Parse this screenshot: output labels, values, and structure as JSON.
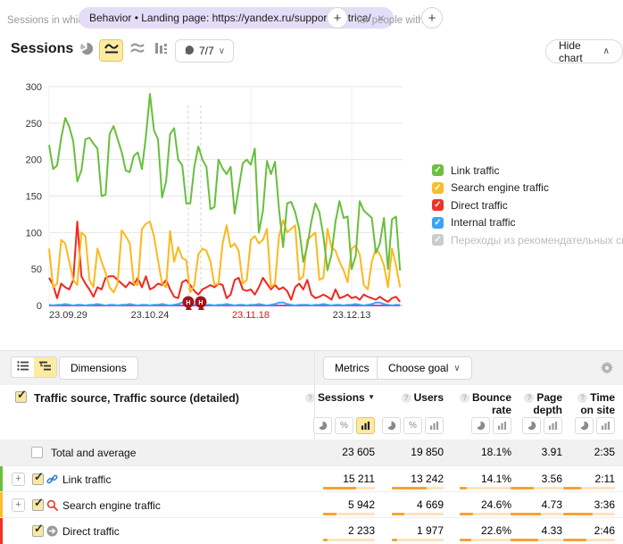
{
  "filter_bar": {
    "prefix": "Sessions in which",
    "chip_text": "Behavior • Landing page: https://yandex.ru/support/metrica/",
    "close_glyph": "×",
    "add_glyph": "+",
    "middle": "for people with"
  },
  "chart_header": {
    "title": "Sessions",
    "segments_label": "7/7",
    "caret_down": "∨",
    "hide_label": "Hide chart",
    "caret_up": "∧"
  },
  "legend": {
    "items": [
      {
        "label": "Link traffic",
        "color": "#6dbf40",
        "disabled": false
      },
      {
        "label": "Search engine traffic",
        "color": "#fbbd2c",
        "disabled": false
      },
      {
        "label": "Direct traffic",
        "color": "#f03226",
        "disabled": false
      },
      {
        "label": "Internal traffic",
        "color": "#3aa5f5",
        "disabled": false
      },
      {
        "label": "Переходы из рекомендательных систем",
        "color": "#cccccc",
        "disabled": true
      }
    ],
    "check_glyph": "✓"
  },
  "chart_data": {
    "type": "line",
    "title": "Sessions",
    "ylim": [
      0,
      300
    ],
    "yticks": [
      0,
      50,
      100,
      150,
      200,
      250,
      300
    ],
    "grid": true,
    "legend_position": "right",
    "x_unit": "day",
    "ticks": [
      {
        "label": "23.09.29",
        "day": 0,
        "weekend": false
      },
      {
        "label": "23.10.24",
        "day": 25,
        "weekend": false
      },
      {
        "label": "23.11.18",
        "day": 50,
        "weekend": true
      },
      {
        "label": "23.12.13",
        "day": 75,
        "weekend": false
      }
    ],
    "notes": [
      {
        "day": 34.5,
        "label": "Н"
      },
      {
        "day": 37.6,
        "label": "Н"
      }
    ],
    "series": [
      {
        "name": "Link traffic",
        "color": "#67bf3c",
        "values": [
          220,
          187,
          192,
          230,
          257,
          245,
          225,
          170,
          185,
          228,
          230,
          222,
          215,
          150,
          152,
          235,
          246,
          228,
          210,
          185,
          183,
          205,
          210,
          187,
          232,
          290,
          240,
          228,
          148,
          170,
          235,
          243,
          200,
          192,
          140,
          140,
          190,
          218,
          200,
          190,
          132,
          135,
          200,
          188,
          180,
          190,
          126,
          160,
          195,
          200,
          193,
          215,
          100,
          130,
          198,
          180,
          197,
          132,
          80,
          140,
          142,
          128,
          105,
          60,
          82,
          115,
          140,
          128,
          95,
          48,
          70,
          115,
          143,
          120,
          122,
          50,
          68,
          143,
          130,
          125,
          120,
          72,
          85,
          120,
          50,
          118,
          122,
          48
        ]
      },
      {
        "name": "Search engine traffic",
        "color": "#fcb81e",
        "values": [
          78,
          25,
          30,
          90,
          85,
          60,
          35,
          28,
          100,
          95,
          35,
          25,
          78,
          60,
          45,
          25,
          18,
          30,
          103,
          95,
          85,
          30,
          28,
          105,
          112,
          115,
          95,
          62,
          30,
          25,
          102,
          60,
          80,
          65,
          62,
          18,
          28,
          70,
          78,
          75,
          60,
          28,
          30,
          85,
          110,
          80,
          85,
          75,
          30,
          35,
          90,
          95,
          85,
          90,
          105,
          25,
          30,
          95,
          117,
          100,
          105,
          110,
          35,
          40,
          90,
          95,
          100,
          35,
          38,
          105,
          80,
          75,
          60,
          48,
          32,
          78,
          82,
          70,
          28,
          22,
          60,
          78,
          70,
          55,
          25,
          78,
          55,
          25
        ]
      },
      {
        "name": "Direct traffic",
        "color": "#f2271c",
        "values": [
          38,
          28,
          10,
          30,
          25,
          22,
          35,
          115,
          40,
          30,
          22,
          12,
          25,
          22,
          38,
          40,
          40,
          35,
          30,
          25,
          32,
          28,
          38,
          25,
          40,
          22,
          25,
          30,
          28,
          35,
          22,
          12,
          10,
          32,
          35,
          28,
          20,
          15,
          22,
          25,
          28,
          25,
          30,
          28,
          10,
          15,
          35,
          38,
          22,
          20,
          22,
          15,
          25,
          38,
          30,
          22,
          28,
          22,
          25,
          20,
          8,
          25,
          30,
          22,
          35,
          15,
          10,
          12,
          15,
          12,
          8,
          22,
          10,
          12,
          15,
          10,
          12,
          8,
          15,
          12,
          10,
          8,
          12,
          8,
          5,
          10,
          12,
          5
        ]
      },
      {
        "name": "Internal traffic",
        "color": "#3aa5f5",
        "values": [
          1,
          0,
          1,
          1,
          2,
          1,
          0,
          1,
          1,
          0,
          1,
          1,
          2,
          1,
          0,
          1,
          1,
          0,
          1,
          1,
          2,
          1,
          0,
          1,
          1,
          0,
          1,
          1,
          2,
          1,
          0,
          1,
          2,
          4,
          4,
          2,
          1,
          0,
          1,
          1,
          1,
          0,
          1,
          1,
          2,
          1,
          0,
          1,
          1,
          0,
          1,
          1,
          2,
          1,
          0,
          1,
          2,
          4,
          4,
          2,
          1,
          0,
          1,
          1,
          1,
          0,
          1,
          1,
          2,
          1,
          0,
          1,
          1,
          0,
          1,
          1,
          2,
          1,
          0,
          1,
          2,
          4,
          4,
          2,
          1,
          0,
          1,
          1
        ]
      },
      {
        "name": "Переходы из рекомендательных систем",
        "color": "#ad4fc4",
        "values": [
          0,
          0,
          0,
          0,
          0,
          0,
          0,
          0,
          0,
          0,
          0,
          0,
          0,
          0,
          0,
          0,
          0,
          0,
          0,
          0,
          0,
          0,
          0,
          0,
          0,
          0,
          0,
          0,
          0,
          0,
          0,
          0,
          0,
          0,
          0,
          0,
          0,
          0,
          0,
          0,
          0,
          0,
          0,
          0,
          0,
          0,
          0,
          0,
          0,
          0,
          0,
          0,
          0,
          0,
          0,
          0,
          0,
          0,
          0,
          0,
          0,
          0,
          0,
          0,
          0,
          0,
          0,
          0,
          0,
          0,
          0,
          0,
          0,
          0,
          0,
          0,
          0,
          0,
          0,
          0,
          0,
          0,
          0,
          0,
          0,
          0,
          0,
          0
        ]
      }
    ]
  },
  "table": {
    "toolbar": {
      "dimensions_label": "Dimensions",
      "metrics_label": "Metrics",
      "choose_goal_label": "Choose goal",
      "caret_down": "∨"
    },
    "dimension_title": "Traffic source, Traffic source (detailed)",
    "expand_glyph": "+",
    "sort_glyph": "▼",
    "help_glyph": "?",
    "percent_glyph": "%",
    "columns": [
      {
        "line1": "Sessions",
        "line2": "",
        "sorted": true
      },
      {
        "line1": "Users",
        "line2": "",
        "sorted": false
      },
      {
        "line1": "Bounce",
        "line2": "rate",
        "sorted": false
      },
      {
        "line1": "Page",
        "line2": "depth",
        "sorted": false
      },
      {
        "line1": "Time",
        "line2": "on site",
        "sorted": false
      }
    ],
    "total": {
      "label": "Total and average",
      "cells": [
        {
          "value": "23 605"
        },
        {
          "value": "19 850"
        },
        {
          "value": "18.1%"
        },
        {
          "value": "3.91"
        },
        {
          "value": "2:35"
        }
      ]
    },
    "rows": [
      {
        "label": "Link traffic",
        "stripe": "#6dbf40",
        "icon": "link",
        "expandable": true,
        "cells": [
          {
            "value": "15 211",
            "bar_pct": 64
          },
          {
            "value": "13 242",
            "bar_pct": 67
          },
          {
            "value": "14.1%",
            "bar_pct": 14
          },
          {
            "value": "3.56",
            "bar_pct": 44
          },
          {
            "value": "2:11",
            "bar_pct": 34
          }
        ]
      },
      {
        "label": "Search engine traffic",
        "stripe": "#fbbd2c",
        "icon": "search",
        "expandable": true,
        "cells": [
          {
            "value": "5 942",
            "bar_pct": 25
          },
          {
            "value": "4 669",
            "bar_pct": 24
          },
          {
            "value": "24.6%",
            "bar_pct": 25
          },
          {
            "value": "4.73",
            "bar_pct": 59
          },
          {
            "value": "3:36",
            "bar_pct": 57
          }
        ]
      },
      {
        "label": "Direct traffic",
        "stripe": "#f03226",
        "icon": "direct",
        "expandable": false,
        "cells": [
          {
            "value": "2 233",
            "bar_pct": 9
          },
          {
            "value": "1 977",
            "bar_pct": 10
          },
          {
            "value": "22.6%",
            "bar_pct": 23
          },
          {
            "value": "4.33",
            "bar_pct": 54
          },
          {
            "value": "2:46",
            "bar_pct": 44
          }
        ]
      }
    ]
  }
}
